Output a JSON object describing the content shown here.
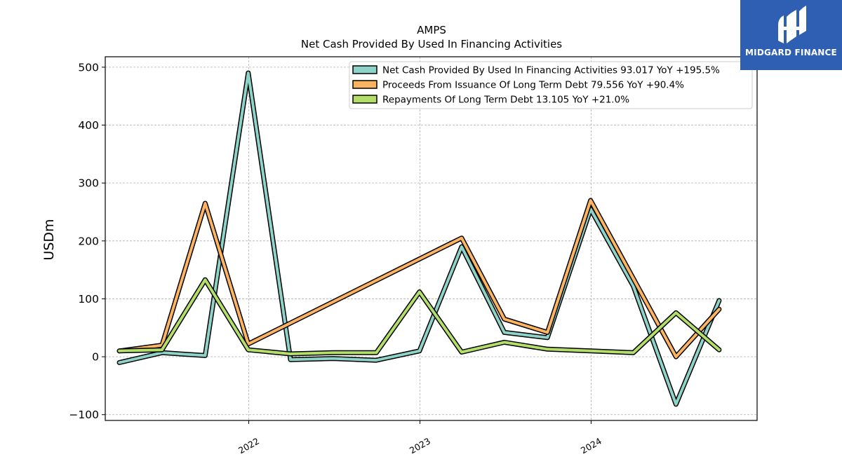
{
  "chart_data": {
    "type": "line",
    "title": "AMPS",
    "subtitle": "Net Cash Provided By Used In Financing Activities",
    "xlabel": "",
    "ylabel": "USDm",
    "ylim": [
      -110,
      518
    ],
    "xlim": [
      "2021-03-01",
      "2024-12-20"
    ],
    "x_ticks": [
      {
        "date": "2022-01-01",
        "label": "2022"
      },
      {
        "date": "2023-01-01",
        "label": "2023"
      },
      {
        "date": "2024-01-01",
        "label": "2024"
      }
    ],
    "y_ticks": [
      {
        "value": 500,
        "label": "500"
      },
      {
        "value": 400,
        "label": "400"
      },
      {
        "value": 300,
        "label": "300"
      },
      {
        "value": 200,
        "label": "200"
      },
      {
        "value": 100,
        "label": "100"
      },
      {
        "value": 0,
        "label": "0"
      },
      {
        "value": -100,
        "label": "−100"
      }
    ],
    "grid": true,
    "legend_position": "top-right",
    "series": [
      {
        "name": "Net Cash Provided By Used In Financing Activities",
        "legend_label": "Net Cash Provided By Used In Financing Activities  93.017 YoY +195.5%",
        "color": "#8dd3c7",
        "points": [
          [
            "2021-03-31",
            -10
          ],
          [
            "2021-06-30",
            7
          ],
          [
            "2021-09-30",
            2
          ],
          [
            "2021-12-31",
            490
          ],
          [
            "2022-03-31",
            -5
          ],
          [
            "2022-06-30",
            -3
          ],
          [
            "2022-09-30",
            -6
          ],
          [
            "2022-12-31",
            10
          ],
          [
            "2023-03-31",
            190
          ],
          [
            "2023-06-30",
            42
          ],
          [
            "2023-09-30",
            33
          ],
          [
            "2023-12-31",
            255
          ],
          [
            "2024-03-31",
            122
          ],
          [
            "2024-06-30",
            -82
          ],
          [
            "2024-09-30",
            97
          ]
        ]
      },
      {
        "name": "Proceeds From Issuance Of Long Term Debt",
        "legend_label": "Proceeds From Issuance Of Long Term Debt  79.556 YoY +90.4%",
        "color": "#fdb462",
        "points": [
          [
            "2021-03-31",
            10
          ],
          [
            "2021-06-30",
            20
          ],
          [
            "2021-09-30",
            265
          ],
          [
            "2021-12-31",
            22
          ],
          [
            "2023-03-31",
            205
          ],
          [
            "2023-06-30",
            65
          ],
          [
            "2023-09-30",
            42
          ],
          [
            "2023-12-31",
            270
          ],
          [
            "2024-03-31",
            135
          ],
          [
            "2024-06-30",
            0
          ],
          [
            "2024-09-30",
            82
          ]
        ]
      },
      {
        "name": "Repayments Of Long Term Debt",
        "legend_label": "Repayments Of Long Term Debt  13.105 YoY +21.0%",
        "color": "#b3de69",
        "points": [
          [
            "2021-03-31",
            10
          ],
          [
            "2021-06-30",
            12
          ],
          [
            "2021-09-30",
            133
          ],
          [
            "2021-12-31",
            12
          ],
          [
            "2022-03-31",
            5
          ],
          [
            "2022-06-30",
            7
          ],
          [
            "2022-09-30",
            7
          ],
          [
            "2022-12-31",
            112
          ],
          [
            "2023-03-31",
            8
          ],
          [
            "2023-06-30",
            25
          ],
          [
            "2023-09-30",
            13
          ],
          [
            "2023-12-31",
            10
          ],
          [
            "2024-03-31",
            7
          ],
          [
            "2024-06-30",
            76
          ],
          [
            "2024-09-30",
            12
          ]
        ]
      }
    ]
  },
  "logo": {
    "text": "MIDGARD FINANCE",
    "icon": "midgard-logo-icon",
    "background": "#2f5fb3"
  }
}
